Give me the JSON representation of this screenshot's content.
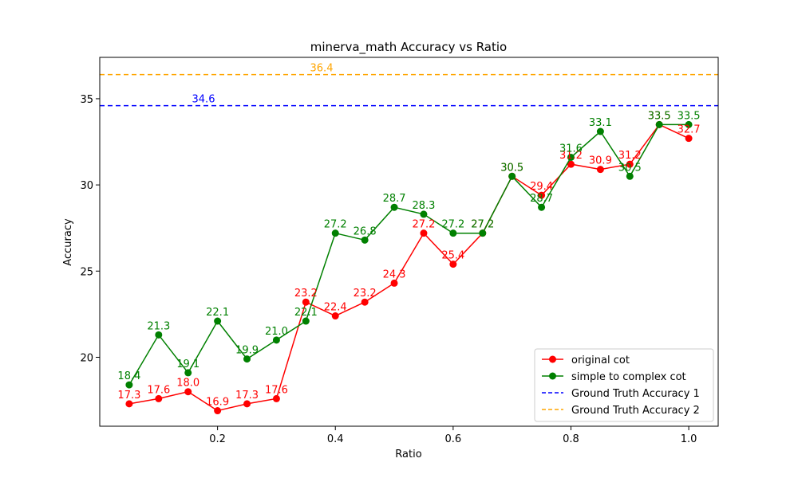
{
  "chart_data": {
    "type": "line",
    "title": "minerva_math Accuracy vs Ratio",
    "xlabel": "Ratio",
    "ylabel": "Accuracy",
    "xlim": [
      0.0,
      1.05
    ],
    "ylim": [
      16.0,
      37.4
    ],
    "xticks": [
      "0.2",
      "0.4",
      "0.6",
      "0.8",
      "1.0"
    ],
    "yticks": [
      "20",
      "25",
      "30",
      "35"
    ],
    "x": [
      0.05,
      0.1,
      0.15,
      0.2,
      0.25,
      0.3,
      0.35,
      0.4,
      0.45,
      0.5,
      0.55,
      0.6,
      0.65,
      0.7,
      0.75,
      0.8,
      0.85,
      0.9,
      0.95,
      1.0
    ],
    "series": [
      {
        "name": "original cot",
        "color": "#ff0000",
        "values": [
          17.3,
          17.6,
          18.0,
          16.9,
          17.3,
          17.6,
          23.2,
          22.4,
          23.2,
          24.3,
          27.2,
          25.4,
          27.2,
          30.5,
          29.4,
          31.2,
          30.9,
          31.2,
          33.5,
          32.7
        ],
        "labels": [
          "17.3",
          "17.6",
          "18.0",
          "16.9",
          "17.3",
          "17.6",
          "23.2",
          "22.4",
          "23.2",
          "24.3",
          "27.2",
          "25.4",
          "27.2",
          "30.5",
          "29.4",
          "31.2",
          "30.9",
          "31.2",
          "33.5",
          "32.7"
        ]
      },
      {
        "name": "simple to complex cot",
        "color": "#008000",
        "values": [
          18.4,
          21.3,
          19.1,
          22.1,
          19.9,
          21.0,
          22.1,
          27.2,
          26.8,
          28.7,
          28.3,
          27.2,
          27.2,
          30.5,
          28.7,
          31.6,
          33.1,
          30.5,
          33.5,
          33.5
        ],
        "labels": [
          "18.4",
          "21.3",
          "19.1",
          "22.1",
          "19.9",
          "21.0",
          "22.1",
          "27.2",
          "26.8",
          "28.7",
          "28.3",
          "27.2",
          "27.2",
          "30.5",
          "28.7",
          "31.6",
          "33.1",
          "30.5",
          "33.5",
          "33.5"
        ]
      }
    ],
    "reference_lines": [
      {
        "name": "Ground Truth Accuracy 1",
        "value": 34.6,
        "label": "34.6",
        "color": "#0000ff"
      },
      {
        "name": "Ground Truth Accuracy 2",
        "value": 36.4,
        "label": "36.4",
        "color": "#ffa500"
      }
    ],
    "legend": {
      "position": "lower-right",
      "entries": [
        "original cot",
        "simple to complex cot",
        "Ground Truth Accuracy 1",
        "Ground Truth Accuracy 2"
      ]
    },
    "grid": false
  }
}
